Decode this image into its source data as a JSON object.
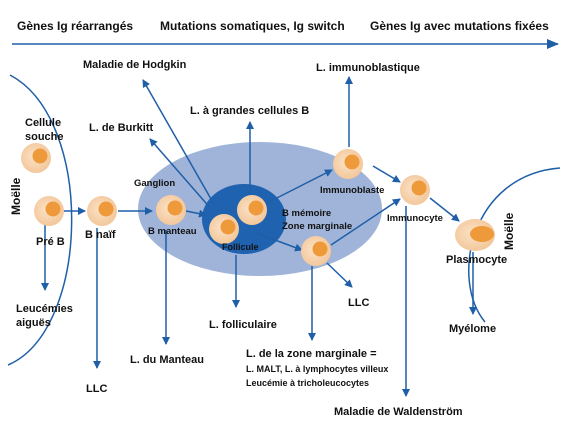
{
  "header": {
    "stage_1": "Gènes Ig réarrangés",
    "stage_2": "Mutations somatiques, Ig switch",
    "stage_3": "Gènes Ig avec mutations fixées"
  },
  "regions": {
    "bone_marrow_left": "Moëlle",
    "bone_marrow_right": "Moëlle",
    "ganglion": "Ganglion",
    "follicle": "Follicule",
    "memory_line1": "B mémoire",
    "memory_line2": "Zone marginale"
  },
  "cells": {
    "stem_line1": "Cellule",
    "stem_line2": "souche",
    "pre_b": "Pré B",
    "naive_b": "B naïf",
    "mantle_b": "B manteau",
    "immunoblast": "Immunoblaste",
    "immunocyte": "Immunocyte",
    "plasmocyte": "Plasmocyte"
  },
  "diseases": {
    "hodgkin": "Maladie de Hodgkin",
    "immunoblastic": "L. immunoblastique",
    "burkitt": "L. de Burkitt",
    "large_b_cell": "L. à grandes cellules B",
    "leukemia_line1": "Leucémies",
    "leukemia_line2": "aiguës",
    "llc_left": "LLC",
    "mantle": "L. du Manteau",
    "follicular": "L. folliculaire",
    "llc_right": "LLC",
    "marginal_line1": "L. de la zone marginale =",
    "marginal_line2": "L. MALT, L. à lymphocytes villeux",
    "marginal_line3": "Leucémie à tricholeucocytes",
    "waldenstrom": "Maladie de Waldenström",
    "myeloma": "Myélome"
  },
  "colors": {
    "arrow_blue": "#1f5fa8",
    "ganglion_fill": "#9fb4d8",
    "follicle_fill": "#1f63b0",
    "cell_outer": "#f7d5b3",
    "cell_inner": "#ef9a3a"
  }
}
